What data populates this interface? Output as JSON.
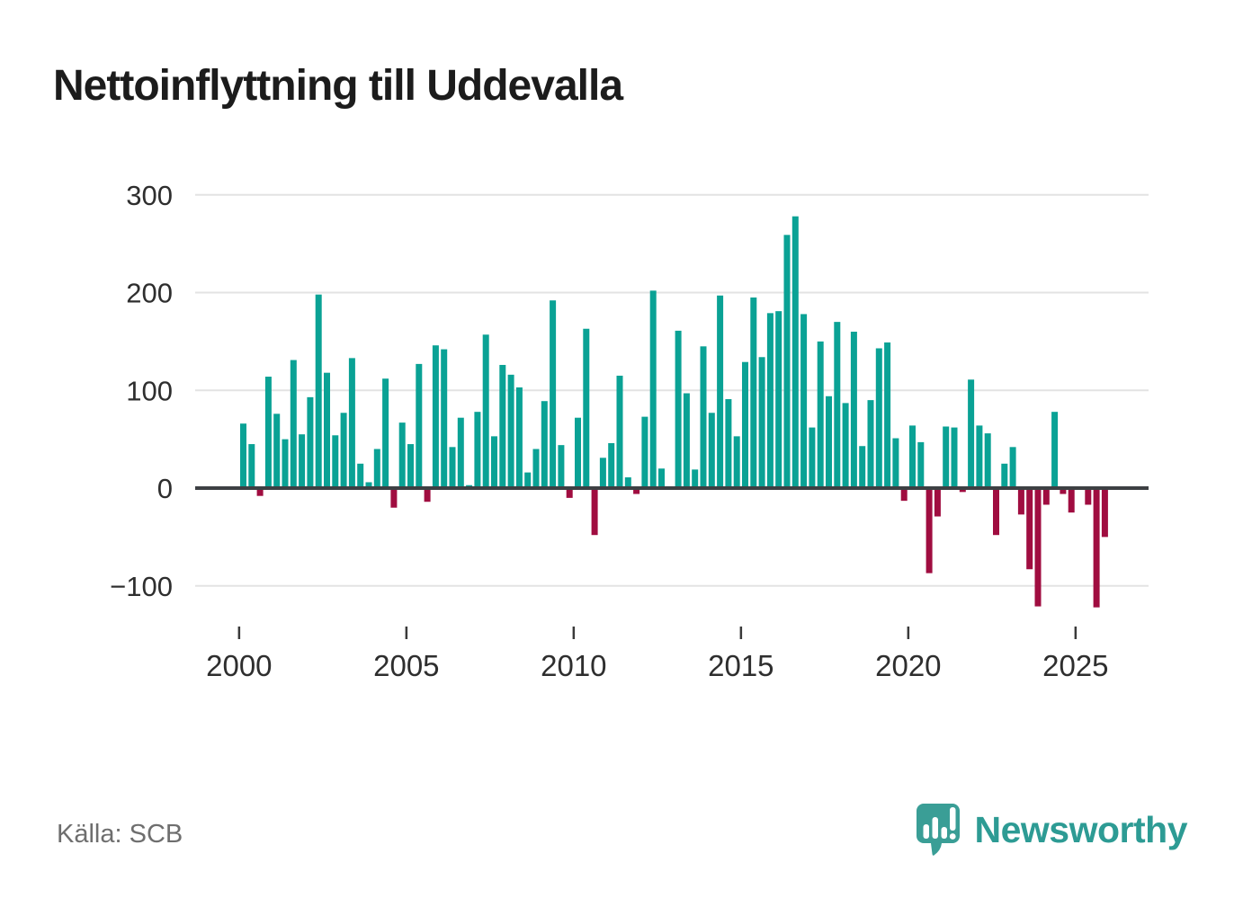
{
  "title": "Nettoinflyttning till Uddevalla",
  "source": "Källa: SCB",
  "branding": {
    "name": "Newsworthy",
    "icon": "bar-chart-speech-bubble"
  },
  "colors": {
    "positive_bar": "#0aa295",
    "negative_bar": "#a00d40",
    "axis_line": "#3d4043",
    "grid_line": "#e3e3e3",
    "tick_text": "#2e2e2e",
    "title_text": "#1c1c1c",
    "source_text": "#6e6e6e",
    "brand_teal": "#2d9b94"
  },
  "chart_data": {
    "type": "bar",
    "title": "Nettoinflyttning till Uddevalla",
    "xlabel": "",
    "ylabel": "",
    "period": {
      "start": "2000 Q1",
      "end": "2025 Q4",
      "frequency": "quarterly"
    },
    "values": [
      66,
      45,
      -8,
      114,
      76,
      50,
      131,
      55,
      93,
      198,
      118,
      54,
      77,
      133,
      25,
      6,
      40,
      112,
      -20,
      67,
      45,
      127,
      -14,
      146,
      142,
      42,
      72,
      3,
      78,
      157,
      53,
      126,
      116,
      103,
      16,
      40,
      89,
      192,
      44,
      -10,
      72,
      163,
      -48,
      31,
      46,
      115,
      11,
      -6,
      73,
      202,
      20,
      0,
      161,
      97,
      19,
      145,
      77,
      197,
      91,
      53,
      129,
      195,
      134,
      179,
      181,
      259,
      278,
      178,
      62,
      150,
      94,
      170,
      87,
      160,
      43,
      90,
      143,
      149,
      51,
      -13,
      64,
      47,
      -87,
      -29,
      63,
      62,
      -4,
      111,
      64,
      56,
      -48,
      25,
      42,
      -27,
      -83,
      -121,
      -17,
      78,
      -6,
      -25,
      0,
      -17,
      -122,
      -50
    ],
    "xticks": [
      2000,
      2005,
      2010,
      2015,
      2020,
      2025
    ],
    "yticks": [
      300,
      200,
      100,
      0,
      -100
    ],
    "ylim": [
      -135,
      325
    ],
    "grid": true,
    "legend": "none",
    "positive_color": "#0aa295",
    "negative_color": "#a00d40"
  }
}
